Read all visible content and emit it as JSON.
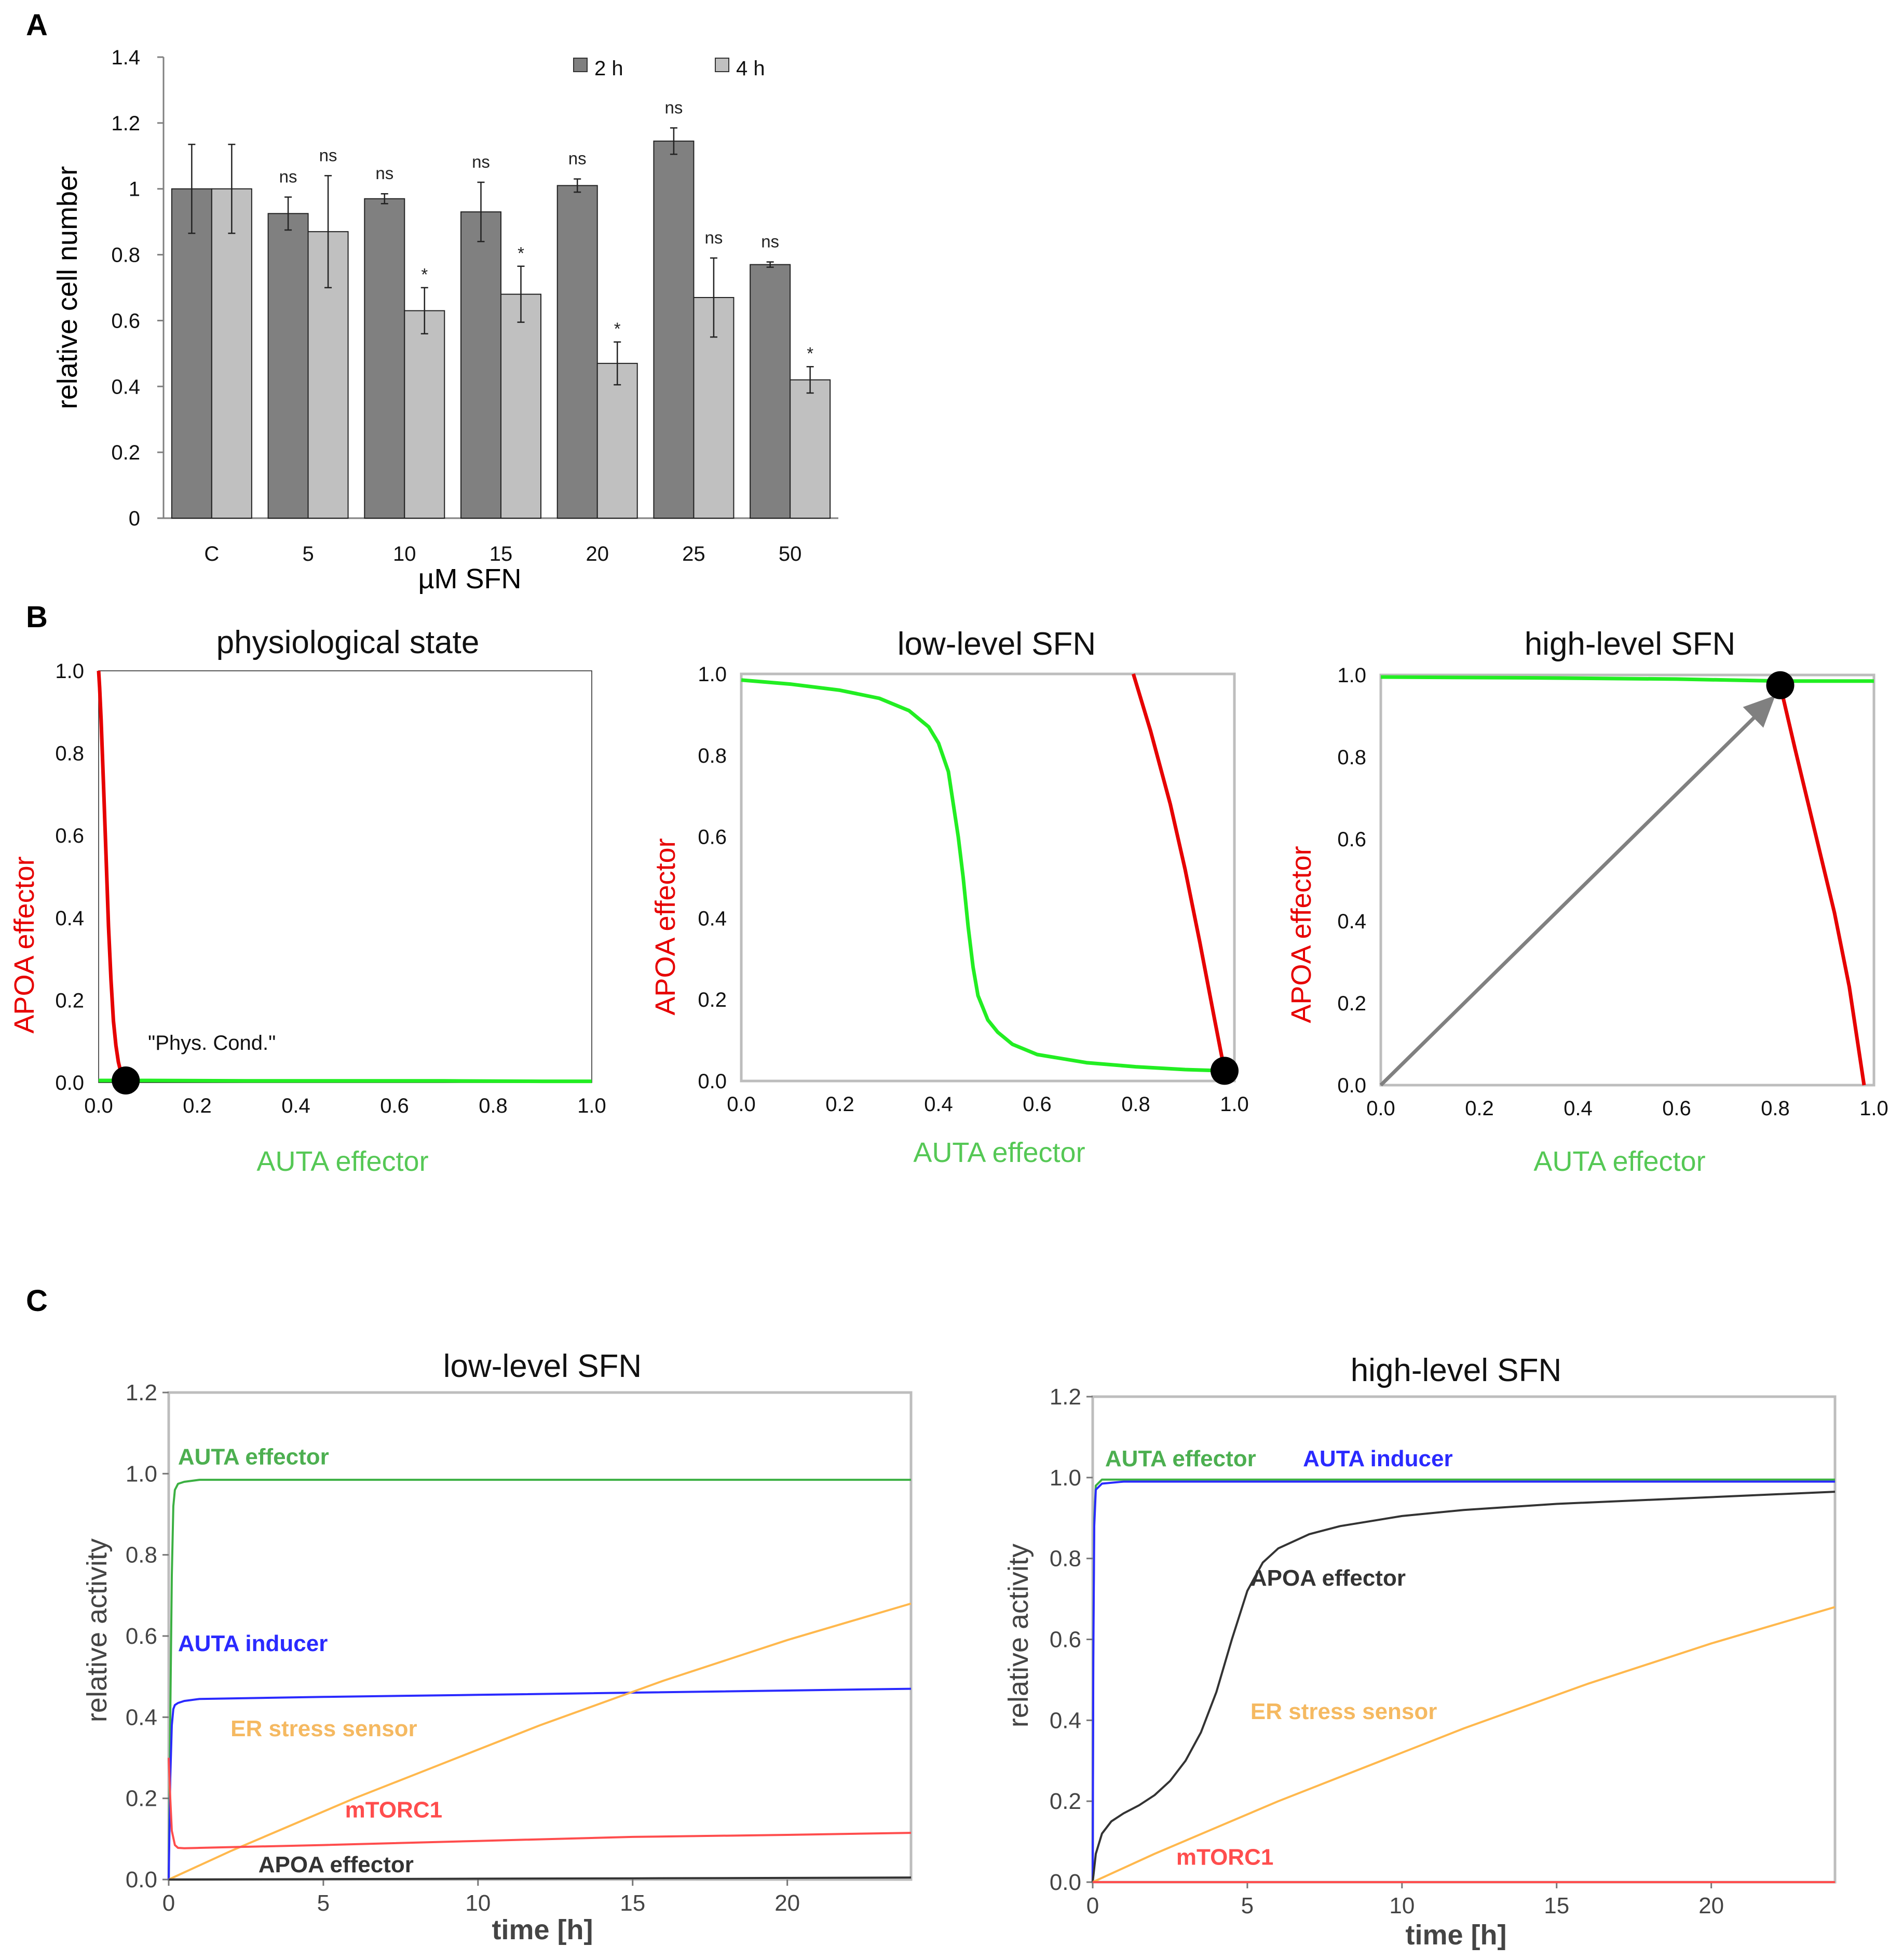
{
  "chart_data": [
    {
      "panel": "A",
      "type": "bar",
      "title": "",
      "xlabel": "µM SFN",
      "ylabel": "relative cell number",
      "ylim": [
        0,
        1.4
      ],
      "yticks": [
        "0",
        "0.2",
        "0.4",
        "0.6",
        "0.8",
        "1",
        "1.2",
        "1.4"
      ],
      "categories": [
        "C",
        "5",
        "10",
        "15",
        "20",
        "25",
        "50"
      ],
      "series": [
        {
          "name": "2 h",
          "color": "#808080",
          "values": [
            1.0,
            0.925,
            0.97,
            0.93,
            1.01,
            1.145,
            0.77
          ],
          "errors": [
            0.135,
            0.05,
            0.015,
            0.09,
            0.02,
            0.04,
            0.008
          ],
          "annotations": [
            "",
            "ns",
            "ns",
            "ns",
            "ns",
            "ns",
            "ns"
          ]
        },
        {
          "name": "4 h",
          "color": "#c0c0c0",
          "values": [
            1.0,
            0.87,
            0.63,
            0.68,
            0.47,
            0.67,
            0.42
          ],
          "errors": [
            0.135,
            0.17,
            0.07,
            0.085,
            0.065,
            0.12,
            0.04
          ],
          "annotations": [
            "",
            "ns",
            "*",
            "*",
            "*",
            "ns",
            "*"
          ]
        }
      ],
      "legend": "top"
    },
    {
      "panel": "B",
      "type": "line",
      "title": "physiological state",
      "xlabel": "AUTA effector",
      "ylabel": "APOA effector",
      "xlim": [
        0,
        1
      ],
      "ylim": [
        0,
        1
      ],
      "ticks": [
        "0.0",
        "0.2",
        "0.4",
        "0.6",
        "0.8",
        "1.0"
      ],
      "series": [
        {
          "name": "APOA nullcline",
          "color": "#e60000",
          "x": [
            0.0,
            0.002,
            0.005,
            0.01,
            0.015,
            0.02,
            0.025,
            0.03,
            0.035,
            0.04,
            0.045,
            0.05,
            0.055
          ],
          "y": [
            1.0,
            0.96,
            0.88,
            0.72,
            0.55,
            0.38,
            0.25,
            0.15,
            0.09,
            0.05,
            0.025,
            0.012,
            0.005
          ]
        },
        {
          "name": "AUTA nullcline",
          "color": "#22ee22",
          "x": [
            0.0,
            0.1,
            0.3,
            0.5,
            0.7,
            0.9,
            1.0
          ],
          "y": [
            0.005,
            0.005,
            0.004,
            0.004,
            0.004,
            0.003,
            0.003
          ]
        }
      ],
      "fixed_point": {
        "x": 0.055,
        "y": 0.005,
        "label": "\"Phys. Cond.\""
      }
    },
    {
      "panel": "B",
      "type": "line",
      "title": "low-level SFN",
      "xlabel": "AUTA effector",
      "ylabel": "APOA effector",
      "xlim": [
        0,
        1
      ],
      "ylim": [
        0,
        1
      ],
      "ticks": [
        "0.0",
        "0.2",
        "0.4",
        "0.6",
        "0.8",
        "1.0"
      ],
      "series": [
        {
          "name": "AUTA nullcline",
          "color": "#22ee22",
          "x": [
            0.0,
            0.1,
            0.2,
            0.28,
            0.34,
            0.38,
            0.4,
            0.42,
            0.44,
            0.45,
            0.46,
            0.47,
            0.48,
            0.5,
            0.52,
            0.55,
            0.6,
            0.7,
            0.8,
            0.9,
            0.98
          ],
          "y": [
            0.985,
            0.975,
            0.96,
            0.94,
            0.91,
            0.87,
            0.83,
            0.76,
            0.6,
            0.5,
            0.38,
            0.28,
            0.21,
            0.15,
            0.12,
            0.09,
            0.065,
            0.045,
            0.035,
            0.028,
            0.025
          ]
        },
        {
          "name": "APOA nullcline",
          "color": "#e60000",
          "x": [
            0.795,
            0.83,
            0.87,
            0.9,
            0.93,
            0.96,
            0.98
          ],
          "y": [
            1.0,
            0.86,
            0.68,
            0.52,
            0.34,
            0.15,
            0.025
          ]
        }
      ],
      "fixed_point": {
        "x": 0.98,
        "y": 0.025
      }
    },
    {
      "panel": "B",
      "type": "line",
      "title": "high-level SFN",
      "xlabel": "AUTA effector",
      "ylabel": "APOA effector",
      "xlim": [
        0,
        1
      ],
      "ylim": [
        0,
        1
      ],
      "ticks": [
        "0.0",
        "0.2",
        "0.4",
        "0.6",
        "0.8",
        "1.0"
      ],
      "series": [
        {
          "name": "AUTA nullcline",
          "color": "#22ee22",
          "x": [
            0.0,
            0.3,
            0.6,
            0.81,
            1.0
          ],
          "y": [
            0.995,
            0.993,
            0.99,
            0.985,
            0.985
          ]
        },
        {
          "name": "APOA nullcline",
          "color": "#e60000",
          "x": [
            0.81,
            0.84,
            0.88,
            0.92,
            0.95,
            0.98
          ],
          "y": [
            0.975,
            0.82,
            0.62,
            0.42,
            0.24,
            0.0
          ]
        }
      ],
      "fixed_point": {
        "x": 0.81,
        "y": 0.975
      },
      "arrow": {
        "from": [
          0.0,
          0.0
        ],
        "to": [
          0.8,
          0.95
        ],
        "color": "#808080"
      }
    },
    {
      "panel": "C",
      "type": "line",
      "title": "low-level SFN",
      "xlabel": "time [h]",
      "ylabel": "relative activity",
      "xlim": [
        0,
        24
      ],
      "ylim": [
        0,
        1.2
      ],
      "xticks": [
        "0",
        "5",
        "10",
        "15",
        "20"
      ],
      "yticks": [
        "0.0",
        "0.2",
        "0.4",
        "0.6",
        "0.8",
        "1.0",
        "1.2"
      ],
      "series": [
        {
          "name": "AUTA effector",
          "color": "#3cb043",
          "x": [
            0,
            0.05,
            0.1,
            0.15,
            0.2,
            0.3,
            0.5,
            1,
            24
          ],
          "y": [
            0,
            0.4,
            0.75,
            0.92,
            0.96,
            0.975,
            0.98,
            0.985,
            0.985
          ]
        },
        {
          "name": "AUTA inducer",
          "color": "#2a2aff",
          "x": [
            0,
            0.05,
            0.1,
            0.15,
            0.2,
            0.3,
            0.5,
            1,
            5,
            10,
            24
          ],
          "y": [
            0,
            0.25,
            0.38,
            0.42,
            0.43,
            0.435,
            0.44,
            0.445,
            0.45,
            0.455,
            0.47
          ]
        },
        {
          "name": "ER stress sensor",
          "color": "#ffb84d",
          "x": [
            0,
            2,
            4,
            6,
            8,
            10,
            12,
            14,
            16,
            18,
            20,
            22,
            24
          ],
          "y": [
            0.0,
            0.07,
            0.135,
            0.2,
            0.26,
            0.32,
            0.38,
            0.435,
            0.49,
            0.54,
            0.59,
            0.635,
            0.68
          ]
        },
        {
          "name": "mTORC1",
          "color": "#ff4d4d",
          "x": [
            0,
            0.05,
            0.1,
            0.2,
            0.3,
            0.5,
            1,
            5,
            10,
            15,
            20,
            24
          ],
          "y": [
            0.3,
            0.2,
            0.12,
            0.085,
            0.078,
            0.077,
            0.078,
            0.085,
            0.095,
            0.105,
            0.11,
            0.115
          ]
        },
        {
          "name": "APOA effector",
          "color": "#333333",
          "x": [
            0,
            5,
            10,
            15,
            20,
            24
          ],
          "y": [
            0.0,
            0.001,
            0.002,
            0.003,
            0.004,
            0.005
          ]
        }
      ]
    },
    {
      "panel": "C",
      "type": "line",
      "title": "high-level SFN",
      "xlabel": "time [h]",
      "ylabel": "relative activity",
      "xlim": [
        0,
        24
      ],
      "ylim": [
        0,
        1.2
      ],
      "xticks": [
        "0",
        "5",
        "10",
        "15",
        "20"
      ],
      "yticks": [
        "0.0",
        "0.2",
        "0.4",
        "0.6",
        "0.8",
        "1.0",
        "1.2"
      ],
      "series": [
        {
          "name": "AUTA effector",
          "color": "#3cb043",
          "x": [
            0,
            0.02,
            0.05,
            0.1,
            0.3,
            1,
            24
          ],
          "y": [
            0,
            0.6,
            0.9,
            0.98,
            0.995,
            0.995,
            0.995
          ]
        },
        {
          "name": "AUTA inducer",
          "color": "#2a2aff",
          "x": [
            0,
            0.02,
            0.05,
            0.1,
            0.3,
            1,
            24
          ],
          "y": [
            0,
            0.55,
            0.88,
            0.97,
            0.985,
            0.99,
            0.99
          ]
        },
        {
          "name": "APOA effector",
          "color": "#333333",
          "x": [
            0,
            0.1,
            0.3,
            0.6,
            1,
            1.5,
            2,
            2.5,
            3,
            3.5,
            4,
            4.5,
            5,
            5.5,
            6,
            7,
            8,
            10,
            12,
            15,
            18,
            21,
            24
          ],
          "y": [
            0,
            0.07,
            0.12,
            0.15,
            0.17,
            0.19,
            0.215,
            0.25,
            0.3,
            0.37,
            0.47,
            0.6,
            0.72,
            0.79,
            0.825,
            0.86,
            0.88,
            0.905,
            0.92,
            0.935,
            0.945,
            0.955,
            0.965
          ]
        },
        {
          "name": "ER stress sensor",
          "color": "#ffb84d",
          "x": [
            0,
            2,
            4,
            6,
            8,
            10,
            12,
            14,
            16,
            18,
            20,
            22,
            24
          ],
          "y": [
            0.0,
            0.07,
            0.135,
            0.2,
            0.26,
            0.32,
            0.38,
            0.435,
            0.49,
            0.54,
            0.59,
            0.635,
            0.68
          ]
        },
        {
          "name": "mTORC1",
          "color": "#ff4d4d",
          "x": [
            0,
            5,
            10,
            15,
            20,
            24
          ],
          "y": [
            0.0,
            0.0,
            0.0,
            0.0,
            0.0,
            0.0
          ]
        }
      ]
    }
  ],
  "panels": {
    "A": "A",
    "B": "B",
    "C": "C"
  }
}
